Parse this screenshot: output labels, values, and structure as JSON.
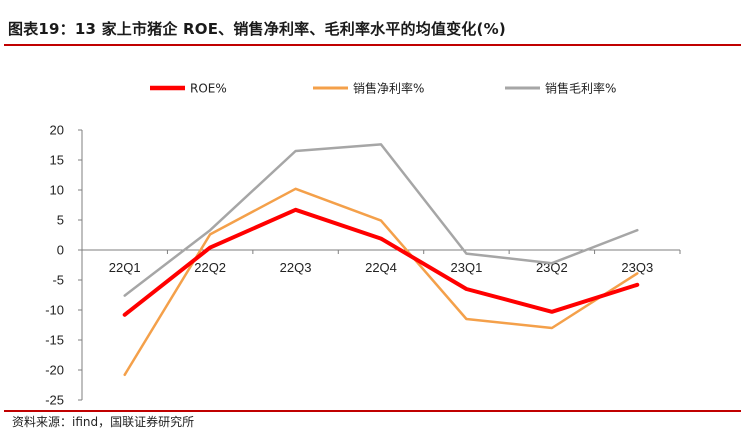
{
  "header": {
    "title": "图表19：13 家上市猪企 ROE、销售净利率、毛利率水平的均值变化(%)"
  },
  "footer": {
    "source": "资料来源：ifind，国联证券研究所"
  },
  "chart_data": {
    "type": "line",
    "title": "",
    "xlabel": "",
    "ylabel": "",
    "categories": [
      "22Q1",
      "22Q2",
      "22Q3",
      "22Q4",
      "23Q1",
      "23Q2",
      "23Q3"
    ],
    "ylim": [
      -25,
      20
    ],
    "yticks": [
      20,
      15,
      10,
      5,
      0,
      -5,
      -10,
      -15,
      -20,
      -25
    ],
    "grid": false,
    "legend_position": "top",
    "series": [
      {
        "name": "ROE%",
        "color": "#ff0000",
        "values": [
          -10.8,
          0.4,
          6.7,
          1.9,
          -6.5,
          -10.3,
          -5.8
        ]
      },
      {
        "name": "销售净利率%",
        "color": "#f4a04a",
        "values": [
          -20.8,
          2.6,
          10.2,
          4.9,
          -11.5,
          -13.0,
          -3.9
        ]
      },
      {
        "name": "销售毛利率%",
        "color": "#a6a6a6",
        "values": [
          -7.6,
          3.3,
          16.5,
          17.6,
          -0.6,
          -2.2,
          3.3
        ]
      }
    ]
  }
}
